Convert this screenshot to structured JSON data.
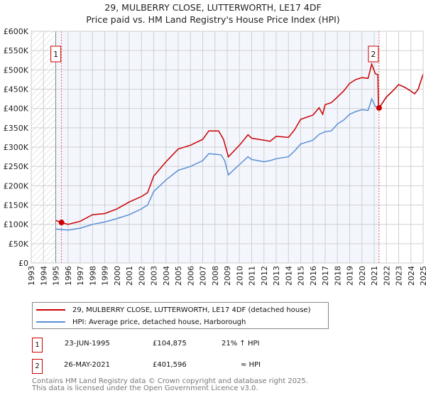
{
  "title": "29, MULBERRY CLOSE, LUTTERWORTH, LE17 4DF",
  "subtitle": "Price paid vs. HM Land Registry's House Price Index (HPI)",
  "chart_data": {
    "type": "line",
    "title": "29, MULBERRY CLOSE, LUTTERWORTH, LE17 4DF",
    "subtitle": "Price paid vs. HM Land Registry's House Price Index (HPI)",
    "xlim": [
      1993,
      2025
    ],
    "ylim": [
      0,
      600000
    ],
    "grid": true,
    "x_ticks": [
      "1993",
      "1994",
      "1995",
      "1996",
      "1997",
      "1998",
      "1999",
      "2000",
      "2001",
      "2002",
      "2003",
      "2004",
      "2005",
      "2006",
      "2007",
      "2008",
      "2009",
      "2010",
      "2011",
      "2012",
      "2013",
      "2014",
      "2015",
      "2016",
      "2017",
      "2018",
      "2019",
      "2020",
      "2021",
      "2022",
      "2023",
      "2024",
      "2025"
    ],
    "y_ticks": [
      {
        "v": 0,
        "l": "£0"
      },
      {
        "v": 50000,
        "l": "£50K"
      },
      {
        "v": 100000,
        "l": "£100K"
      },
      {
        "v": 150000,
        "l": "£150K"
      },
      {
        "v": 200000,
        "l": "£200K"
      },
      {
        "v": 250000,
        "l": "£250K"
      },
      {
        "v": 300000,
        "l": "£300K"
      },
      {
        "v": 350000,
        "l": "£350K"
      },
      {
        "v": 400000,
        "l": "£400K"
      },
      {
        "v": 450000,
        "l": "£450K"
      },
      {
        "v": 500000,
        "l": "£500K"
      },
      {
        "v": 550000,
        "l": "£550K"
      },
      {
        "v": 600000,
        "l": "£600K"
      }
    ],
    "shaded_range": [
      1995.47,
      2021.4
    ],
    "hatched_before": 1995,
    "series": [
      {
        "name": "29, MULBERRY CLOSE, LUTTERWORTH, LE17 4DF (detached house)",
        "color": "#cc0000",
        "x": [
          1995.0,
          1995.47,
          1996,
          1997,
          1998,
          1999,
          2000,
          2001,
          2002,
          2002.5,
          2003,
          2004,
          2005,
          2006,
          2007,
          2007.5,
          2008.3,
          2008.7,
          2009.1,
          2010,
          2010.7,
          2011,
          2012,
          2012.5,
          2013,
          2014,
          2014.5,
          2015,
          2016,
          2016.5,
          2016.8,
          2017,
          2017.5,
          2018,
          2018.5,
          2019,
          2019.5,
          2020,
          2020.5,
          2020.8,
          2021.1,
          2021.3,
          2021.35,
          2021.4,
          2022,
          2022.5,
          2023,
          2023.5,
          2024,
          2024.3,
          2024.6,
          2025
        ],
        "y": [
          110000,
          104875,
          100000,
          108000,
          125000,
          128000,
          140000,
          158000,
          172000,
          182000,
          225000,
          262000,
          295000,
          305000,
          320000,
          342000,
          342000,
          320000,
          275000,
          305000,
          332000,
          323000,
          318000,
          315000,
          328000,
          325000,
          345000,
          372000,
          383000,
          402000,
          385000,
          410000,
          415000,
          430000,
          445000,
          465000,
          475000,
          480000,
          478000,
          515000,
          490000,
          488000,
          401000,
          401596,
          430000,
          445000,
          462000,
          455000,
          445000,
          438000,
          450000,
          490000
        ]
      },
      {
        "name": "HPI: Average price, detached house, Harborough",
        "color": "#5b8fd4",
        "x": [
          1995.0,
          1996,
          1997,
          1998,
          1999,
          2000,
          2001,
          2002,
          2002.5,
          2003,
          2004,
          2005,
          2006,
          2007,
          2007.5,
          2008.5,
          2008.8,
          2009.1,
          2010,
          2010.7,
          2011,
          2012,
          2012.5,
          2013,
          2014,
          2014.5,
          2015,
          2016,
          2016.5,
          2017,
          2017.5,
          2018,
          2018.5,
          2019,
          2019.5,
          2020,
          2020.5,
          2020.8,
          2021.1,
          2021.4,
          2022,
          2022.5,
          2023,
          2023.5,
          2024,
          2024.3,
          2024.6,
          2025
        ],
        "y": [
          88000,
          85000,
          90000,
          100000,
          106000,
          115000,
          125000,
          140000,
          150000,
          185000,
          215000,
          240000,
          250000,
          265000,
          283000,
          280000,
          265000,
          228000,
          255000,
          275000,
          268000,
          262000,
          265000,
          270000,
          275000,
          290000,
          308000,
          318000,
          333000,
          340000,
          342000,
          360000,
          370000,
          385000,
          392000,
          397000,
          395000,
          425000,
          405000,
          401000,
          430000,
          445000,
          462000,
          455000,
          445000,
          438000,
          450000,
          490000
        ]
      }
    ],
    "annotations": [
      {
        "label": "1",
        "x": 1995.47,
        "y": 104875
      },
      {
        "label": "2",
        "x": 2021.4,
        "y": 401596
      }
    ]
  },
  "legend": [
    {
      "label": "29, MULBERRY CLOSE, LUTTERWORTH, LE17 4DF (detached house)",
      "color": "#cc0000"
    },
    {
      "label": "HPI: Average price, detached house, Harborough",
      "color": "#5b8fd4"
    }
  ],
  "transactions": [
    {
      "num": "1",
      "date": "23-JUN-1995",
      "price": "£104,875",
      "hpi": "21% ↑ HPI"
    },
    {
      "num": "2",
      "date": "26-MAY-2021",
      "price": "£401,596",
      "hpi": "≈ HPI"
    }
  ],
  "footer": [
    "Contains HM Land Registry data © Crown copyright and database right 2025.",
    "This data is licensed under the Open Government Licence v3.0."
  ]
}
